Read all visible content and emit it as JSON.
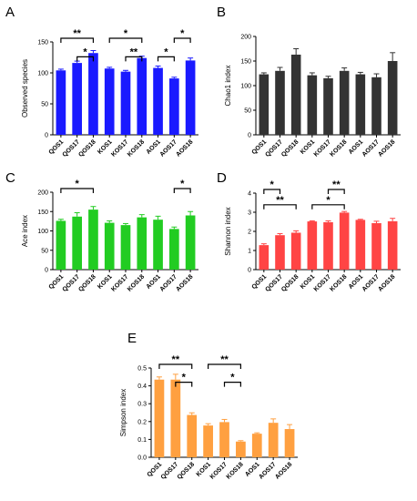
{
  "chart_data": [
    {
      "panel": "A",
      "type": "bar",
      "categories": [
        "QOS1",
        "QOS17",
        "QOS18",
        "KOS1",
        "KOS17",
        "KOS18",
        "AOS1",
        "AOS17",
        "AOS18"
      ],
      "values": [
        104,
        116,
        132,
        107,
        102,
        124,
        108,
        91,
        120
      ],
      "errors": [
        2,
        3,
        4,
        2,
        2,
        3,
        3,
        2,
        4
      ],
      "ylabel": "Observed species",
      "ylim": [
        0,
        150
      ],
      "yticks": [
        0,
        50,
        100,
        150
      ],
      "color": "#1a1aff",
      "significance": [
        {
          "from": 0,
          "to": 2,
          "label": "**",
          "level": 0
        },
        {
          "from": 1,
          "to": 2,
          "label": "*",
          "level": 1
        },
        {
          "from": 3,
          "to": 5,
          "label": "*",
          "level": 0
        },
        {
          "from": 4,
          "to": 5,
          "label": "**",
          "level": 1
        },
        {
          "from": 6,
          "to": 7,
          "label": "*",
          "level": 1
        },
        {
          "from": 7,
          "to": 8,
          "label": "*",
          "level": 0
        }
      ]
    },
    {
      "panel": "B",
      "type": "bar",
      "categories": [
        "QOS1",
        "QOS17",
        "QOS18",
        "KOS1",
        "KOS17",
        "KOS18",
        "AOS1",
        "AOS17",
        "AOS18"
      ],
      "values": [
        123,
        130,
        163,
        121,
        115,
        130,
        123,
        117,
        150
      ],
      "errors": [
        3,
        7,
        12,
        5,
        4,
        6,
        4,
        7,
        17
      ],
      "ylabel": "Chao1 index",
      "ylim": [
        0,
        200
      ],
      "yticks": [
        0,
        50,
        100,
        150,
        200
      ],
      "color": "#333333",
      "significance": []
    },
    {
      "panel": "C",
      "type": "bar",
      "categories": [
        "QOS1",
        "QOS17",
        "QOS18",
        "KOS1",
        "KOS17",
        "KOS18",
        "AOS1",
        "AOS17",
        "AOS18"
      ],
      "values": [
        126,
        137,
        155,
        121,
        115,
        135,
        129,
        105,
        140
      ],
      "errors": [
        4,
        10,
        8,
        5,
        4,
        7,
        9,
        5,
        10
      ],
      "ylabel": "Ace index",
      "ylim": [
        0,
        200
      ],
      "yticks": [
        0,
        50,
        100,
        150,
        200
      ],
      "color": "#22cc22",
      "significance": [
        {
          "from": 0,
          "to": 2,
          "label": "*",
          "level": 0
        },
        {
          "from": 7,
          "to": 8,
          "label": "*",
          "level": 0
        }
      ]
    },
    {
      "panel": "D",
      "type": "bar",
      "categories": [
        "QOS1",
        "QOS17",
        "QOS18",
        "KOS1",
        "KOS17",
        "KOS18",
        "AOS1",
        "AOS17",
        "AOS18"
      ],
      "values": [
        1.28,
        1.8,
        1.93,
        2.52,
        2.48,
        2.98,
        2.6,
        2.43,
        2.53
      ],
      "errors": [
        0.07,
        0.08,
        0.1,
        0.03,
        0.07,
        0.06,
        0.03,
        0.1,
        0.15
      ],
      "ylabel": "Shannon index",
      "ylim": [
        0,
        4
      ],
      "yticks": [
        0,
        1,
        2,
        3,
        4
      ],
      "color": "#ff4444",
      "significance": [
        {
          "from": 0,
          "to": 1,
          "label": "*",
          "level": 0
        },
        {
          "from": 0,
          "to": 2,
          "label": "**",
          "level": 1
        },
        {
          "from": 3,
          "to": 5,
          "label": "*",
          "level": 1
        },
        {
          "from": 4,
          "to": 5,
          "label": "**",
          "level": 0
        }
      ]
    },
    {
      "panel": "E",
      "type": "bar",
      "categories": [
        "QOS1",
        "QOS17",
        "QOS18",
        "KOS1",
        "KOS17",
        "KOS18",
        "AOS1",
        "AOS17",
        "AOS18"
      ],
      "values": [
        0.435,
        0.435,
        0.237,
        0.178,
        0.197,
        0.088,
        0.132,
        0.193,
        0.158
      ],
      "errors": [
        0.015,
        0.03,
        0.012,
        0.01,
        0.015,
        0.005,
        0.005,
        0.022,
        0.025
      ],
      "ylabel": "Simpson index",
      "ylim": [
        0,
        0.5
      ],
      "yticks": [
        0.0,
        0.1,
        0.2,
        0.3,
        0.4,
        0.5
      ],
      "color": "#ffa040",
      "significance": [
        {
          "from": 0,
          "to": 2,
          "label": "**",
          "level": 0
        },
        {
          "from": 1,
          "to": 2,
          "label": "*",
          "level": 1
        },
        {
          "from": 3,
          "to": 5,
          "label": "**",
          "level": 0
        },
        {
          "from": 4,
          "to": 5,
          "label": "*",
          "level": 1
        }
      ]
    }
  ]
}
